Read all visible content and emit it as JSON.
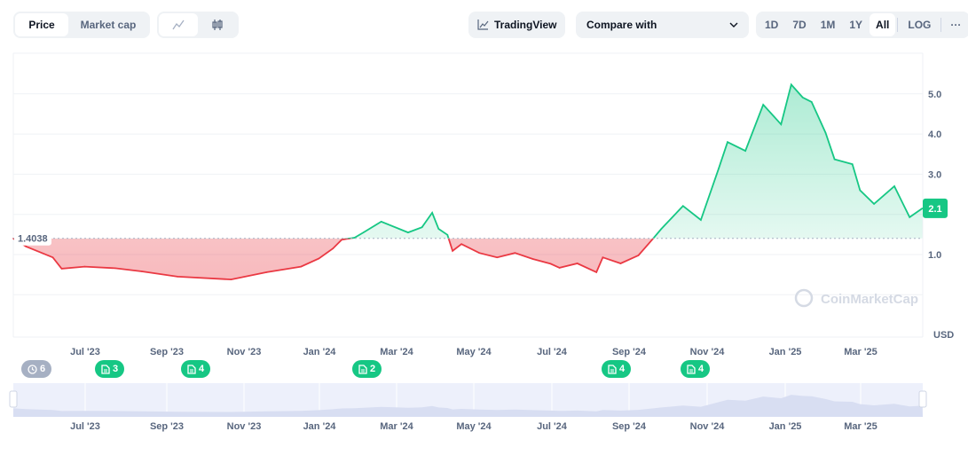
{
  "toolbar": {
    "type_tabs": [
      {
        "label": "Price",
        "active": true
      },
      {
        "label": "Market cap",
        "active": false
      }
    ],
    "chart_styles": [
      {
        "icon": "line-chart-icon",
        "active": true
      },
      {
        "icon": "candlestick-icon",
        "active": false
      }
    ],
    "tradingview_label": "TradingView",
    "compare_label": "Compare with",
    "ranges": [
      {
        "label": "1D"
      },
      {
        "label": "7D"
      },
      {
        "label": "1M"
      },
      {
        "label": "1Y"
      },
      {
        "label": "All",
        "active": true
      }
    ],
    "log_label": "LOG",
    "more_label": "···"
  },
  "watermark": "CoinMarketCap",
  "events": [
    {
      "label": "6",
      "kind": "history"
    },
    {
      "label": "3",
      "kind": "news"
    },
    {
      "label": "4",
      "kind": "news"
    },
    {
      "label": "2",
      "kind": "news"
    },
    {
      "label": "4",
      "kind": "news"
    },
    {
      "label": "4",
      "kind": "news"
    }
  ],
  "chart_data": {
    "type": "line",
    "baseline": 1.4038,
    "baseline_label": "1.4038",
    "current_label": "2.1",
    "currency": "USD",
    "yticks": [
      "1.0",
      "3.0",
      "4.0",
      "5.0"
    ],
    "ylim": [
      0,
      5.8
    ],
    "xticks": [
      "Jul '23",
      "Sep '23",
      "Nov '23",
      "Jan '24",
      "Mar '24",
      "May '24",
      "Jul '24",
      "Sep '24",
      "Nov '24",
      "Jan '25",
      "Mar '25"
    ],
    "colors": {
      "up": "#16c784",
      "down": "#ea3943"
    },
    "grid": true,
    "points": [
      [
        "2023-05-06",
        1.4
      ],
      [
        "2023-05-16",
        1.2
      ],
      [
        "2023-06-06",
        0.93
      ],
      [
        "2023-06-13",
        0.65
      ],
      [
        "2023-07-01",
        0.7
      ],
      [
        "2023-07-25",
        0.66
      ],
      [
        "2023-08-15",
        0.58
      ],
      [
        "2023-09-12",
        0.45
      ],
      [
        "2023-10-24",
        0.38
      ],
      [
        "2023-11-21",
        0.56
      ],
      [
        "2023-12-18",
        0.7
      ],
      [
        "2024-01-01",
        0.9
      ],
      [
        "2024-01-12",
        1.15
      ],
      [
        "2024-01-19",
        1.37
      ],
      [
        "2024-01-29",
        1.42
      ],
      [
        "2024-02-05",
        1.55
      ],
      [
        "2024-02-19",
        1.82
      ],
      [
        "2024-03-04",
        1.64
      ],
      [
        "2024-03-11",
        1.55
      ],
      [
        "2024-03-22",
        1.68
      ],
      [
        "2024-03-30",
        2.04
      ],
      [
        "2024-04-04",
        1.64
      ],
      [
        "2024-04-11",
        1.49
      ],
      [
        "2024-04-15",
        1.09
      ],
      [
        "2024-04-22",
        1.26
      ],
      [
        "2024-05-06",
        1.04
      ],
      [
        "2024-05-20",
        0.93
      ],
      [
        "2024-06-03",
        1.04
      ],
      [
        "2024-06-17",
        0.89
      ],
      [
        "2024-07-01",
        0.77
      ],
      [
        "2024-07-08",
        0.67
      ],
      [
        "2024-07-22",
        0.78
      ],
      [
        "2024-08-06",
        0.56
      ],
      [
        "2024-08-11",
        0.93
      ],
      [
        "2024-08-25",
        0.78
      ],
      [
        "2024-09-08",
        0.98
      ],
      [
        "2024-09-19",
        1.38
      ],
      [
        "2024-09-26",
        1.64
      ],
      [
        "2024-10-13",
        2.21
      ],
      [
        "2024-10-27",
        1.86
      ],
      [
        "2024-11-10",
        3.14
      ],
      [
        "2024-11-17",
        3.8
      ],
      [
        "2024-12-01",
        3.58
      ],
      [
        "2024-12-15",
        4.73
      ],
      [
        "2024-12-29",
        4.24
      ],
      [
        "2025-01-06",
        5.23
      ],
      [
        "2025-01-15",
        4.91
      ],
      [
        "2025-01-22",
        4.8
      ],
      [
        "2025-02-02",
        4.03
      ],
      [
        "2025-02-09",
        3.37
      ],
      [
        "2025-02-23",
        3.25
      ],
      [
        "2025-03-01",
        2.6
      ],
      [
        "2025-03-12",
        2.26
      ],
      [
        "2025-03-28",
        2.7
      ],
      [
        "2025-04-09",
        1.93
      ],
      [
        "2025-04-19",
        2.15
      ]
    ]
  }
}
